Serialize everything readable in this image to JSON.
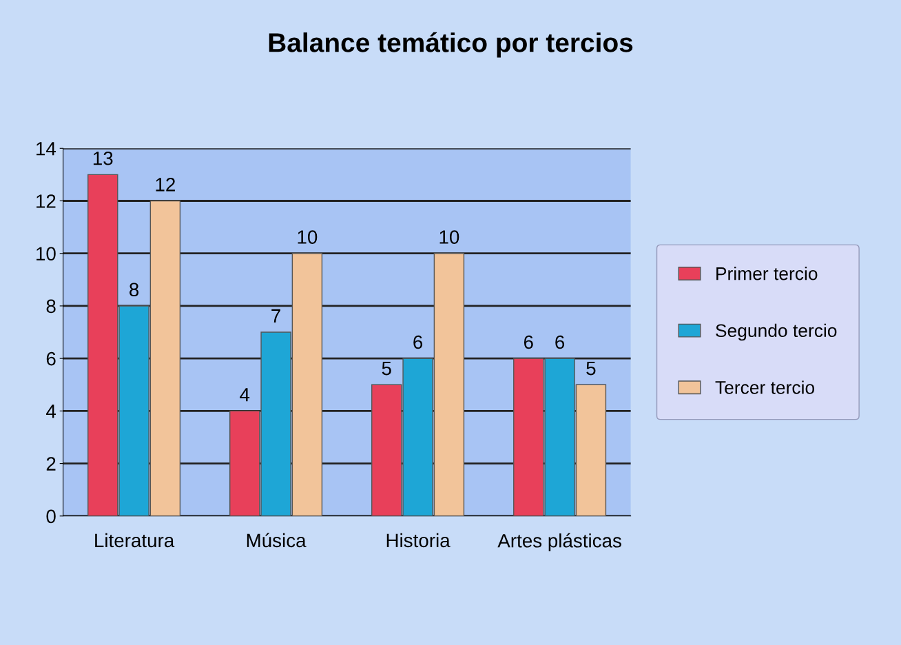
{
  "chart_data": {
    "type": "bar",
    "title": "Balance temático por tercios",
    "categories": [
      "Literatura",
      "Música",
      "Historia",
      "Artes plásticas"
    ],
    "series": [
      {
        "name": "Primer tercio",
        "color": "#e8405a",
        "values": [
          13,
          4,
          5,
          6
        ]
      },
      {
        "name": "Segundo tercio",
        "color": "#1ea6d6",
        "values": [
          8,
          7,
          6,
          6
        ]
      },
      {
        "name": "Tercer tercio",
        "color": "#f2c49a",
        "values": [
          12,
          10,
          10,
          5
        ]
      }
    ],
    "ylim": [
      0,
      14
    ],
    "yticks": [
      0,
      2,
      4,
      6,
      8,
      10,
      12,
      14
    ],
    "grid": "y",
    "legend": "right",
    "data_labels": true
  }
}
